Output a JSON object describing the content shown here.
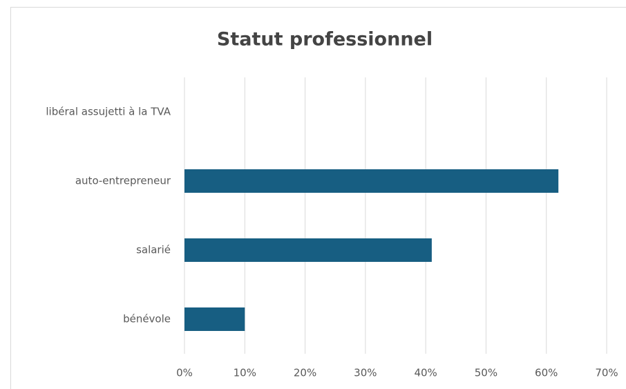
{
  "chart_data": {
    "type": "bar",
    "orientation": "horizontal",
    "title": "Statut professionnel",
    "categories": [
      "libéral assujetti à la TVA",
      "auto-entrepreneur",
      "salarié",
      "bénévole"
    ],
    "values": [
      0,
      62,
      41,
      10
    ],
    "color": "#175e82",
    "xlim": [
      0,
      70
    ],
    "xticks": [
      {
        "value": 0,
        "label": "0%"
      },
      {
        "value": 10,
        "label": "10%"
      },
      {
        "value": 20,
        "label": "20%"
      },
      {
        "value": 30,
        "label": "30%"
      },
      {
        "value": 40,
        "label": "40%"
      },
      {
        "value": 50,
        "label": "50%"
      },
      {
        "value": 60,
        "label": "60%"
      },
      {
        "value": 70,
        "label": "70%"
      }
    ],
    "grid": true
  }
}
